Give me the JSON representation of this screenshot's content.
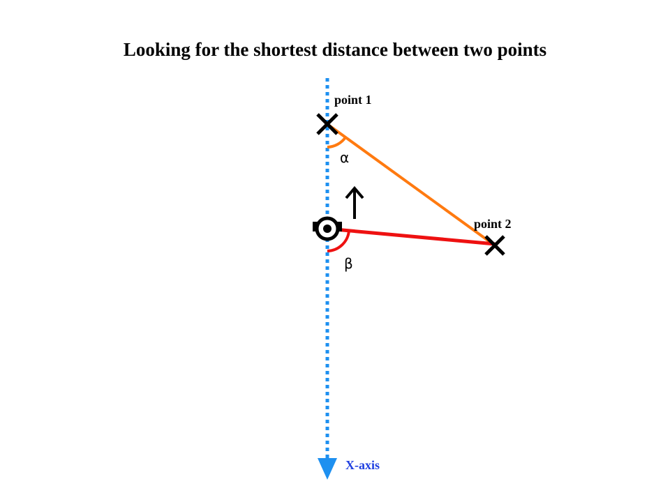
{
  "title": "Looking for the shortest distance between two points",
  "labels": {
    "point1": "point 1",
    "point2": "point 2",
    "alpha": "α",
    "beta": "β",
    "x_axis": "X-axis"
  },
  "colors": {
    "axis": "#1E90F0",
    "axis_label": "#1F3FE0",
    "orange_line": "#FF7A10",
    "red_line": "#EE1111",
    "marker": "#000000"
  },
  "icons": {
    "robot": "robot-icon",
    "heading_arrow": "arrow-up-icon",
    "point_marker": "x-mark-icon"
  }
}
